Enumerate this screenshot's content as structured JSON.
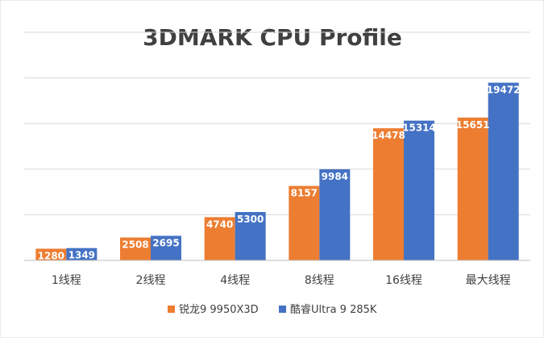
{
  "chart_data": {
    "type": "bar",
    "title": "3DMARK CPU Profile",
    "xlabel": "",
    "ylabel": "",
    "categories": [
      "1线程",
      "2线程",
      "4线程",
      "8线程",
      "16线程",
      "最大线程"
    ],
    "series": [
      {
        "name": "锐龙9 9950X3D",
        "values": [
          1280,
          2508,
          4740,
          8157,
          14478,
          15651
        ]
      },
      {
        "name": "酷睿Ultra 9 285K",
        "values": [
          1349,
          2695,
          5300,
          9984,
          15314,
          19472
        ]
      }
    ],
    "ylim": [
      0,
      25000
    ],
    "grid": true,
    "legend_position": "bottom",
    "data_labels": true
  },
  "colors": {
    "series": [
      "#ED7D31",
      "#4472C4"
    ],
    "grid": "#d9d9d9",
    "title": "#404040",
    "axis_text": "#404040",
    "label": "#ffffff"
  }
}
